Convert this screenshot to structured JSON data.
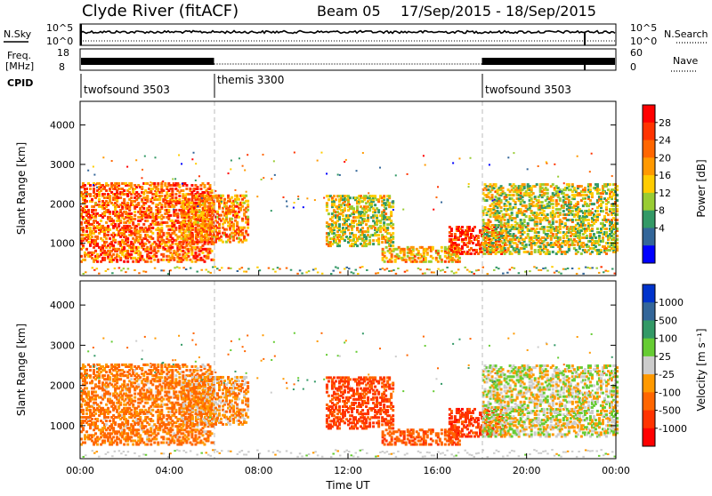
{
  "header": {
    "station": "Clyde River (fitACF)",
    "beam": "Beam 05",
    "date_range": "17/Sep/2015 - 18/Sep/2015"
  },
  "params": {
    "nsky_label": "N.Sky",
    "nsky_ticks": [
      "10^5",
      "10^0"
    ],
    "nsearch_label": "N.Search",
    "nsearch_ticks": [
      "10^5",
      "10^0"
    ],
    "freq_label_1": "Freq.",
    "freq_label_2": "[MHz]",
    "freq_ticks": [
      "18",
      "8"
    ],
    "nave_label": "Nave",
    "nave_ticks": [
      "60",
      "0"
    ],
    "cpid_label": "CPID",
    "cpid_segments": [
      "twofsound 3503",
      "themis 3300",
      "twofsound 3503"
    ]
  },
  "power_panel": {
    "ylabel": "Slant Range [km]",
    "yticks": [
      "4000",
      "3000",
      "2000",
      "1000"
    ],
    "colorbar_label": "Power [dB]",
    "colorbar_ticks": [
      "28",
      "24",
      "20",
      "16",
      "12",
      "8",
      "4"
    ],
    "colors": [
      "#ff0000",
      "#ff3300",
      "#ff6600",
      "#ff9900",
      "#ffcc00",
      "#99cc33",
      "#339966",
      "#336699",
      "#0000ff"
    ]
  },
  "velocity_panel": {
    "ylabel": "Slant Range [km]",
    "yticks": [
      "4000",
      "3000",
      "2000",
      "1000"
    ],
    "colorbar_label": "Velocity [m s⁻¹]",
    "colorbar_ticks": [
      "1000",
      "500",
      "100",
      "25",
      "-25",
      "-100",
      "-500",
      "-1000"
    ],
    "colors": [
      "#0033cc",
      "#336699",
      "#339966",
      "#66cc33",
      "#cccccc",
      "#ff9900",
      "#ff6600",
      "#ff3300",
      "#ff0000"
    ]
  },
  "xaxis": {
    "ticks": [
      "00:00",
      "04:00",
      "08:00",
      "12:00",
      "16:00",
      "20:00",
      "00:00"
    ],
    "label": "Time UT"
  },
  "chart_data": {
    "type": "heatmap",
    "x_unit": "hours UT",
    "xlim": [
      0,
      24
    ],
    "ylim_km": [
      180,
      4600
    ],
    "cpid_changes_hours": [
      6,
      18
    ],
    "power_db_range": [
      0,
      30
    ],
    "velocity_range": [
      -1000,
      1000
    ],
    "echo_regions": [
      {
        "t_start": 0.0,
        "t_end": 6.0,
        "range_low_km": 500,
        "range_high_km": 2500,
        "mean_power_db": 22,
        "mean_velocity": -150
      },
      {
        "t_start": 4.5,
        "t_end": 7.5,
        "range_low_km": 1000,
        "range_high_km": 2200,
        "mean_power_db": 20,
        "mean_velocity": -80
      },
      {
        "t_start": 11.0,
        "t_end": 14.0,
        "range_low_km": 900,
        "range_high_km": 2200,
        "mean_power_db": 14,
        "mean_velocity": -600
      },
      {
        "t_start": 13.5,
        "t_end": 17.0,
        "range_low_km": 500,
        "range_high_km": 900,
        "mean_power_db": 18,
        "mean_velocity": -400
      },
      {
        "t_start": 16.5,
        "t_end": 19.0,
        "range_low_km": 700,
        "range_high_km": 1400,
        "mean_power_db": 26,
        "mean_velocity": -700
      },
      {
        "t_start": 18.0,
        "t_end": 24.0,
        "range_low_km": 700,
        "range_high_km": 2500,
        "mean_power_db": 14,
        "mean_velocity": 0
      }
    ]
  }
}
